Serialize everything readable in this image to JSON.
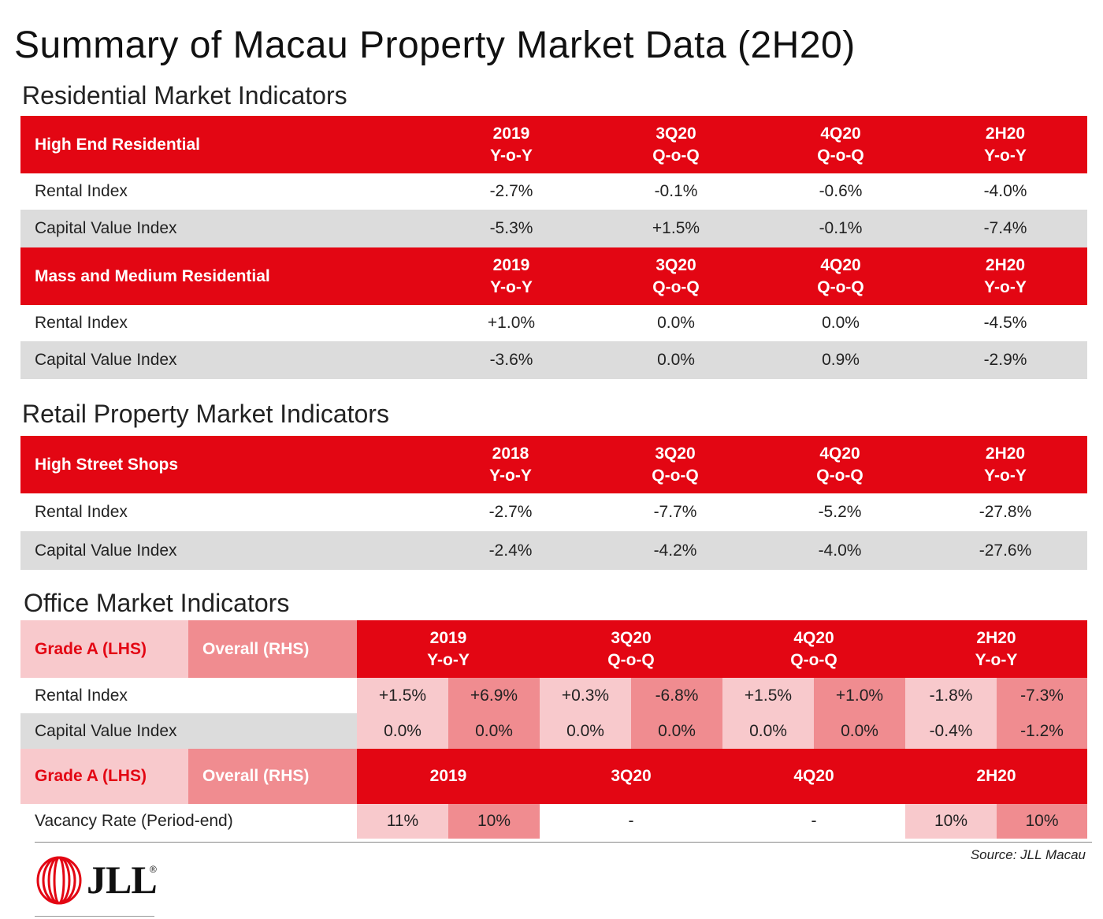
{
  "title": "Summary of Macau Property Market Data (2H20)",
  "residential": {
    "heading": "Residential Market Indicators",
    "high_end": {
      "label": "High End Residential",
      "cols": [
        [
          "2019",
          "Y-o-Y"
        ],
        [
          "3Q20",
          "Q-o-Q"
        ],
        [
          "4Q20",
          "Q-o-Q"
        ],
        [
          "2H20",
          "Y-o-Y"
        ]
      ],
      "rows": [
        {
          "label": "Rental Index",
          "values": [
            "-2.7%",
            "-0.1%",
            "-0.6%",
            "-4.0%"
          ]
        },
        {
          "label": "Capital Value Index",
          "values": [
            "-5.3%",
            "+1.5%",
            "-0.1%",
            "-7.4%"
          ]
        }
      ]
    },
    "mass_medium": {
      "label": "Mass and Medium Residential",
      "cols": [
        [
          "2019",
          "Y-o-Y"
        ],
        [
          "3Q20",
          "Q-o-Q"
        ],
        [
          "4Q20",
          "Q-o-Q"
        ],
        [
          "2H20",
          "Y-o-Y"
        ]
      ],
      "rows": [
        {
          "label": "Rental Index",
          "values": [
            "+1.0%",
            "0.0%",
            "0.0%",
            "-4.5%"
          ]
        },
        {
          "label": "Capital Value Index",
          "values": [
            "-3.6%",
            "0.0%",
            "0.9%",
            "-2.9%"
          ]
        }
      ]
    }
  },
  "retail": {
    "heading": "Retail Property Market Indicators",
    "label": "High Street Shops",
    "cols": [
      [
        "2018",
        "Y-o-Y"
      ],
      [
        "3Q20",
        "Q-o-Q"
      ],
      [
        "4Q20",
        "Q-o-Q"
      ],
      [
        "2H20",
        "Y-o-Y"
      ]
    ],
    "rows": [
      {
        "label": "Rental Index",
        "values": [
          "-2.7%",
          "-7.7%",
          "-5.2%",
          "-27.8%"
        ]
      },
      {
        "label": "Capital Value Index",
        "values": [
          "-2.4%",
          "-4.2%",
          "-4.0%",
          "-27.6%"
        ]
      }
    ]
  },
  "office": {
    "heading": "Office Market Indicators",
    "legend_grade_a": "Grade A (LHS)",
    "legend_overall": "Overall (RHS)",
    "cols": [
      [
        "2019",
        "Y-o-Y"
      ],
      [
        "3Q20",
        "Q-o-Q"
      ],
      [
        "4Q20",
        "Q-o-Q"
      ],
      [
        "2H20",
        "Y-o-Y"
      ]
    ],
    "rows": [
      {
        "label": "Rental Index",
        "values": [
          "+1.5%",
          "+6.9%",
          "+0.3%",
          "-6.8%",
          "+1.5%",
          "+1.0%",
          "-1.8%",
          "-7.3%"
        ]
      },
      {
        "label": "Capital Value Index",
        "values": [
          "0.0%",
          "0.0%",
          "0.0%",
          "0.0%",
          "0.0%",
          "0.0%",
          "-0.4%",
          "-1.2%"
        ]
      }
    ],
    "vacancy_cols": [
      "2019",
      "3Q20",
      "4Q20",
      "2H20"
    ],
    "vacancy": {
      "label": "Vacancy Rate (Period-end)",
      "values": [
        "11%",
        "10%",
        "-",
        "-",
        "10%",
        "10%"
      ]
    }
  },
  "source": "Source: JLL Macau",
  "logo": {
    "text": "JLL",
    "mark": "®"
  },
  "colors": {
    "red": "#e30613",
    "grey": "#dcdcdc",
    "light_pink": "#f8c9cc",
    "mid_pink": "#f08c90"
  }
}
